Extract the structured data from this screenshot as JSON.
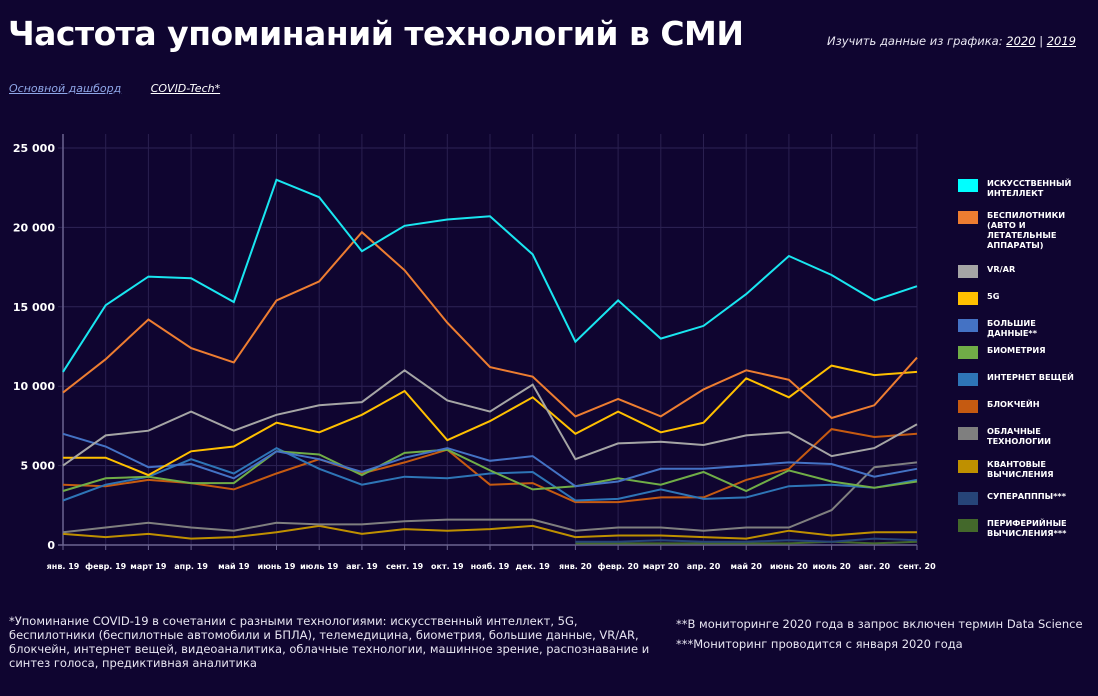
{
  "header": {
    "title": "Частота упоминаний технологий в СМИ",
    "explore_prefix": "Изучить данные из графика:",
    "explore_links": [
      "2020",
      "2019"
    ],
    "explore_separator": "|"
  },
  "nav": {
    "main_dashboard": "Основной дашборд",
    "covid_tech": "COVID-Tech*"
  },
  "chart_data": {
    "type": "line",
    "title": "Частота упоминаний технологий в СМИ",
    "xlabel": "",
    "ylabel": "",
    "ylim": [
      0,
      25000
    ],
    "yticks": [
      0,
      5000,
      10000,
      15000,
      20000,
      25000
    ],
    "ytick_labels": [
      "0",
      "5 000",
      "10 000",
      "15 000",
      "20 000",
      "25 000"
    ],
    "grid": true,
    "legend_position": "right",
    "x": [
      "янв. 19",
      "февр. 19",
      "март 19",
      "апр. 19",
      "май 19",
      "июнь 19",
      "июль 19",
      "авг. 19",
      "сент. 19",
      "окт. 19",
      "нояб. 19",
      "дек. 19",
      "янв. 20",
      "февр. 20",
      "март 20",
      "апр. 20",
      "май 20",
      "июнь 20",
      "июль 20",
      "авг. 20",
      "сент. 20"
    ],
    "series": [
      {
        "name": "Искусственный интеллект",
        "color": "#19e6f0",
        "values": [
          10900,
          15100,
          16900,
          16800,
          15300,
          23000,
          21900,
          18500,
          20100,
          20500,
          20700,
          18300,
          12800,
          15400,
          13000,
          13800,
          15800,
          18200,
          17000,
          15400,
          16300
        ]
      },
      {
        "name": "Беспилотники (авто и летательные аппараты)",
        "color": "#ed7d31",
        "values": [
          9600,
          11700,
          14200,
          12400,
          11500,
          15400,
          16600,
          19700,
          17300,
          14000,
          11200,
          10600,
          8100,
          9200,
          8100,
          9800,
          11000,
          10400,
          8000,
          8800,
          11800
        ]
      },
      {
        "name": "VR/AR",
        "color": "#a5a5a5",
        "values": [
          5000,
          6900,
          7200,
          8400,
          7200,
          8200,
          8800,
          9000,
          11000,
          9100,
          8400,
          10100,
          5400,
          6400,
          6500,
          6300,
          6900,
          7100,
          5600,
          6100,
          7600
        ]
      },
      {
        "name": "5G",
        "color": "#ffc000",
        "values": [
          5500,
          5500,
          4400,
          5900,
          6200,
          7700,
          7100,
          8200,
          9700,
          6600,
          7800,
          9300,
          7000,
          8400,
          7100,
          7700,
          10500,
          9300,
          11300,
          10700,
          10900
        ]
      },
      {
        "name": "Большие данные**",
        "color": "#4472c4",
        "values": [
          7000,
          6200,
          4900,
          5100,
          4200,
          5900,
          5400,
          4600,
          5500,
          6100,
          5300,
          5600,
          3700,
          4000,
          4800,
          4800,
          5000,
          5200,
          5100,
          4300,
          4800
        ]
      },
      {
        "name": "Биометрия",
        "color": "#70ad47",
        "values": [
          3400,
          4200,
          4300,
          3900,
          3900,
          5900,
          5700,
          4400,
          5800,
          6000,
          4700,
          3500,
          3700,
          4200,
          3800,
          4600,
          3400,
          4700,
          4000,
          3600,
          4000
        ]
      },
      {
        "name": "Интернет вещей",
        "color": "#2e75b6",
        "values": [
          2800,
          3800,
          4300,
          5400,
          4500,
          6100,
          4800,
          3800,
          4300,
          4200,
          4500,
          4600,
          2800,
          2900,
          3500,
          2900,
          3000,
          3700,
          3800,
          3600,
          4100
        ]
      },
      {
        "name": "Блокчейн",
        "color": "#c55a11",
        "values": [
          3800,
          3700,
          4100,
          3900,
          3500,
          4500,
          5400,
          4500,
          5200,
          6000,
          3800,
          3900,
          2700,
          2700,
          3000,
          3000,
          4100,
          4800,
          7300,
          6800,
          7000
        ]
      },
      {
        "name": "Облачные технологии",
        "color": "#7f7f7f",
        "values": [
          800,
          1100,
          1400,
          1100,
          900,
          1400,
          1300,
          1300,
          1500,
          1600,
          1600,
          1600,
          900,
          1100,
          1100,
          900,
          1100,
          1100,
          2200,
          4900,
          5200
        ]
      },
      {
        "name": "Квантовые вычисления",
        "color": "#bf9000",
        "values": [
          700,
          500,
          700,
          400,
          500,
          800,
          1200,
          700,
          1000,
          900,
          1000,
          1200,
          500,
          600,
          600,
          500,
          400,
          900,
          600,
          800,
          800
        ]
      },
      {
        "name": "Суперапппы***",
        "color": "#264478",
        "values": [
          null,
          null,
          null,
          null,
          null,
          null,
          null,
          null,
          null,
          null,
          null,
          null,
          200,
          200,
          300,
          200,
          200,
          300,
          200,
          400,
          300
        ]
      },
      {
        "name": "Периферийные вычисления***",
        "color": "#43682b",
        "values": [
          null,
          null,
          null,
          null,
          null,
          null,
          null,
          null,
          null,
          null,
          null,
          null,
          100,
          100,
          100,
          100,
          100,
          100,
          200,
          100,
          200
        ]
      }
    ]
  },
  "legend": [
    {
      "label": "Искусственный интеллект",
      "color": "#00ffff"
    },
    {
      "label": "Беспилотники (авто и летательные аппараты)",
      "color": "#ed7d31"
    },
    {
      "label": "VR/AR",
      "color": "#a5a5a5"
    },
    {
      "label": "5G",
      "color": "#ffc000"
    },
    {
      "label": "Большие данные**",
      "color": "#4472c4"
    },
    {
      "label": "Биометрия",
      "color": "#70ad47"
    },
    {
      "label": "Интернет вещей",
      "color": "#2e75b6"
    },
    {
      "label": "Блокчейн",
      "color": "#c55a11"
    },
    {
      "label": "Облачные технологии",
      "color": "#7f7f7f"
    },
    {
      "label": "Квантовые вычисления",
      "color": "#bf9000"
    },
    {
      "label": "Суперапппы***",
      "color": "#264478"
    },
    {
      "label": "Периферийные вычисления***",
      "color": "#43682b"
    }
  ],
  "footnotes": {
    "left": "*Упоминание COVID-19 в сочетании с разными технологиями: искусственный интеллект, 5G, беспилотники (беспилотные автомобили и БПЛА), телемедицина, биометрия, большие данные, VR/AR, блокчейн, интернет вещей, видеоаналитика, облачные технологии, машинное зрение, распознавание и синтез голоса, предиктивная аналитика",
    "right_1": "**В мониторинге 2020 года в запрос включен термин Data Science",
    "right_2": "***Мониторинг проводится с января 2020 года"
  }
}
